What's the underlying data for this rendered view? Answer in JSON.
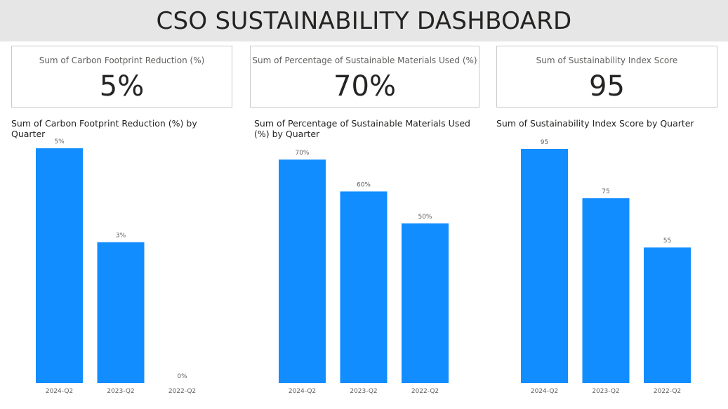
{
  "header": {
    "title": "CSO SUSTAINABILITY DASHBOARD"
  },
  "cards": [
    {
      "label": "Sum of Carbon Footprint Reduction (%)",
      "value": "5%"
    },
    {
      "label": "Sum of Percentage of Sustainable Materials Used (%)",
      "value": "70%"
    },
    {
      "label": "Sum of Sustainability Index Score",
      "value": "95"
    }
  ],
  "colors": {
    "bar": "#118dff",
    "header_bg": "#e6e6e6"
  },
  "chart_data": [
    {
      "type": "bar",
      "title": "Sum of Carbon Footprint Reduction (%) by Quarter",
      "categories": [
        "2024-Q2",
        "2023-Q2",
        "2022-Q2"
      ],
      "values": [
        5,
        3,
        0
      ],
      "labels": [
        "5%",
        "3%",
        "0%"
      ],
      "ylim": [
        0,
        5
      ],
      "grid": false
    },
    {
      "type": "bar",
      "title": "Sum of Percentage of Sustainable Materials Used (%) by Quarter",
      "categories": [
        "2024-Q2",
        "2023-Q2",
        "2022-Q2"
      ],
      "values": [
        70,
        60,
        50
      ],
      "labels": [
        "70%",
        "60%",
        "50%"
      ],
      "ylim": [
        0,
        70
      ],
      "grid": false
    },
    {
      "type": "bar",
      "title": "Sum of Sustainability Index Score by Quarter",
      "categories": [
        "2024-Q2",
        "2023-Q2",
        "2022-Q2"
      ],
      "values": [
        95,
        75,
        55
      ],
      "labels": [
        "95",
        "75",
        "55"
      ],
      "ylim": [
        0,
        95
      ],
      "grid": false
    }
  ]
}
